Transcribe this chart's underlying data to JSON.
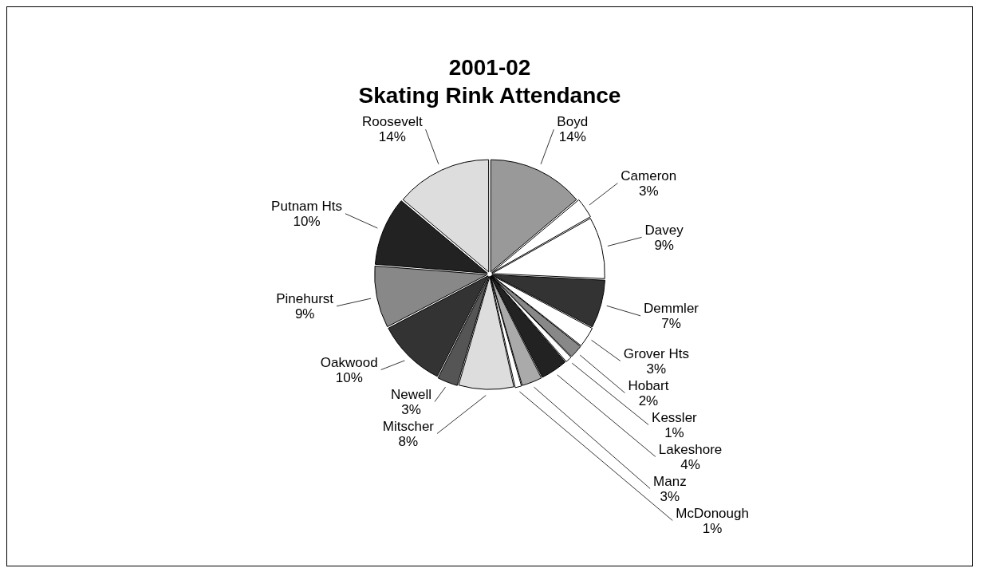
{
  "chart_data": {
    "type": "pie",
    "title": "2001-02",
    "subtitle": "Skating Rink Attendance",
    "categories": [
      "Boyd",
      "Cameron",
      "Davey",
      "Demmler",
      "Grover Hts",
      "Hobart",
      "Kessler",
      "Lakeshore",
      "Manz",
      "McDonough",
      "Mitscher",
      "Newell",
      "Oakwood",
      "Pinehurst",
      "Putnam Hts",
      "Roosevelt"
    ],
    "values": [
      14,
      3,
      9,
      7,
      3,
      2,
      1,
      4,
      3,
      1,
      8,
      3,
      10,
      9,
      10,
      14
    ],
    "colors": [
      "#999999",
      "#ffffff",
      "#ffffff",
      "#333333",
      "#ffffff",
      "#888888",
      "#ffffff",
      "#222222",
      "#aaaaaa",
      "#ffffff",
      "#dddddd",
      "#555555",
      "#333333",
      "#888888",
      "#222222",
      "#dddddd"
    ],
    "value_labels": [
      "14%",
      "3%",
      "9%",
      "7%",
      "3%",
      "2%",
      "1%",
      "4%",
      "3%",
      "1%",
      "8%",
      "3%",
      "10%",
      "9%",
      "10%",
      "14%"
    ],
    "legend": false
  }
}
